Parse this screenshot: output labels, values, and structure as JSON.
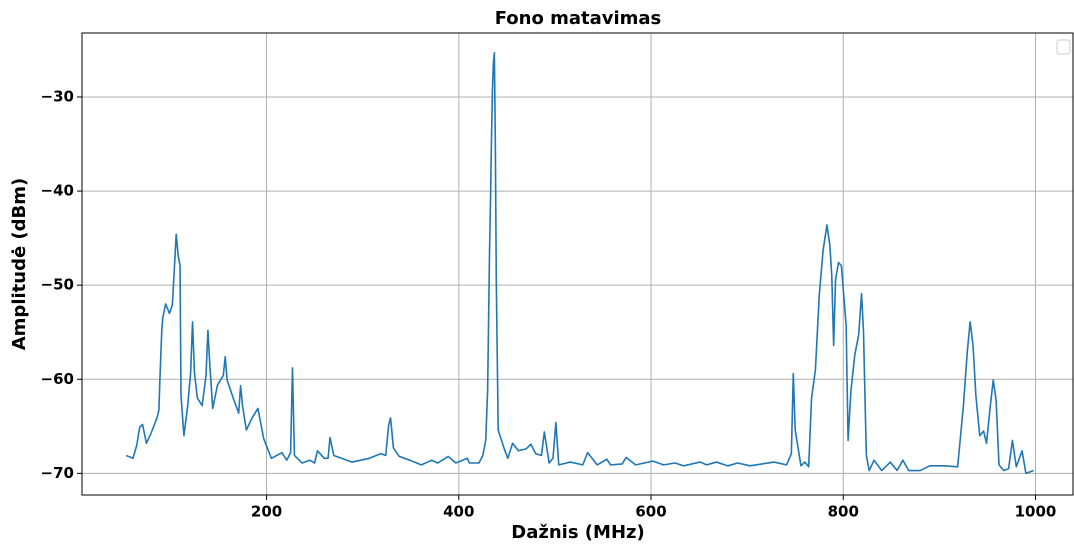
{
  "chart_data": {
    "type": "line",
    "title": "Fono matavimas",
    "x_label": "Dažnis (MHz)",
    "y_label": "Amplitudė (dBm)",
    "grid": true,
    "xlim": [
      8,
      1039
    ],
    "ylim": [
      -72.3,
      -23.2
    ],
    "xticks": [
      200,
      400,
      600,
      800,
      1000
    ],
    "yticks": [
      {
        "value": -70,
        "label": "−70"
      },
      {
        "value": -60,
        "label": "−60"
      },
      {
        "value": -50,
        "label": "−50"
      },
      {
        "value": -40,
        "label": "−40"
      },
      {
        "value": -30,
        "label": "−30"
      }
    ],
    "series": [
      {
        "color": "#1f77b4",
        "x": [
          54,
          61,
          65,
          68,
          71,
          75,
          80,
          86,
          88,
          89,
          91,
          92,
          95,
          99,
          102,
          104,
          106,
          108,
          110,
          111,
          114,
          118,
          121,
          123,
          125,
          128,
          133,
          137,
          139,
          141,
          144,
          149,
          155,
          157,
          159,
          166,
          171,
          173,
          175,
          179,
          185,
          191,
          197,
          205,
          216,
          221,
          225,
          227,
          229,
          237,
          245,
          250,
          253,
          260,
          264,
          266,
          270,
          278,
          289,
          307,
          319,
          324,
          327,
          329,
          332,
          338,
          349,
          361,
          372,
          378,
          389,
          397,
          409,
          411,
          421,
          425,
          428,
          430,
          432,
          433,
          434,
          435,
          436,
          437,
          438,
          439,
          441,
          447,
          451,
          456,
          462,
          470,
          475,
          480,
          486,
          489,
          494,
          498,
          501,
          504,
          516,
          529,
          534,
          544,
          554,
          558,
          570,
          574,
          584,
          602,
          613,
          625,
          634,
          651,
          658,
          668,
          680,
          690,
          703,
          728,
          741,
          746,
          748,
          750,
          756,
          760,
          764,
          767,
          771,
          775,
          779,
          783,
          786,
          788,
          790,
          792,
          795,
          798,
          803,
          805,
          808,
          812,
          816,
          819,
          821,
          824,
          827,
          832,
          840,
          849,
          856,
          862,
          868,
          880,
          890,
          905,
          919,
          925,
          929,
          932,
          935,
          938,
          942,
          946,
          949,
          953,
          956,
          959,
          962,
          967,
          972,
          976,
          980,
          986,
          990,
          998
        ],
        "values": [
          -68.1,
          -68.4,
          -67,
          -65.1,
          -64.8,
          -66.8,
          -65.7,
          -64.1,
          -63.3,
          -60.1,
          -54.8,
          -53.5,
          -52,
          -53,
          -52.1,
          -48.4,
          -44.6,
          -46.8,
          -47.9,
          -61.7,
          -66,
          -62.8,
          -59.3,
          -53.9,
          -59.3,
          -62,
          -62.8,
          -59.6,
          -54.8,
          -58.5,
          -63.1,
          -60.6,
          -59.6,
          -57.6,
          -60.1,
          -62.2,
          -63.6,
          -60.7,
          -62.8,
          -65.4,
          -64.1,
          -63.1,
          -66.3,
          -68.4,
          -67.8,
          -68.6,
          -67.8,
          -58.8,
          -68.1,
          -68.9,
          -68.6,
          -68.9,
          -67.6,
          -68.4,
          -68.4,
          -66.2,
          -68.1,
          -68.4,
          -68.8,
          -68.4,
          -67.9,
          -68.1,
          -64.9,
          -64.1,
          -67.3,
          -68.2,
          -68.6,
          -69.1,
          -68.6,
          -68.9,
          -68.2,
          -68.9,
          -68.4,
          -68.9,
          -68.9,
          -68.1,
          -66.5,
          -61.2,
          -46.3,
          -41,
          -34.6,
          -29.3,
          -26.4,
          -25.3,
          -34.6,
          -49.5,
          -65.4,
          -67.3,
          -68.4,
          -66.8,
          -67.6,
          -67.4,
          -66.9,
          -67.9,
          -68.1,
          -65.6,
          -68.9,
          -68.4,
          -64.6,
          -69.1,
          -68.8,
          -69.1,
          -67.8,
          -69.1,
          -68.5,
          -69.1,
          -69,
          -68.3,
          -69.1,
          -68.7,
          -69.1,
          -68.9,
          -69.2,
          -68.8,
          -69.1,
          -68.8,
          -69.2,
          -68.9,
          -69.2,
          -68.8,
          -69.1,
          -67.9,
          -59.4,
          -65.4,
          -69.2,
          -68.8,
          -69.3,
          -62,
          -59,
          -51.1,
          -46.3,
          -43.6,
          -45.7,
          -48.9,
          -56.4,
          -49.4,
          -47.6,
          -47.9,
          -54.3,
          -66.5,
          -61.2,
          -57.4,
          -55.3,
          -50.9,
          -54.8,
          -68.1,
          -69.7,
          -68.6,
          -69.7,
          -68.8,
          -69.7,
          -68.6,
          -69.7,
          -69.7,
          -69.2,
          -69.2,
          -69.3,
          -62.8,
          -57.1,
          -53.9,
          -56.4,
          -61.8,
          -66,
          -65.5,
          -66.8,
          -62.8,
          -60.1,
          -62.2,
          -69.1,
          -69.7,
          -69.5,
          -66.5,
          -69.3,
          -67.6,
          -70,
          -69.7
        ]
      }
    ]
  }
}
